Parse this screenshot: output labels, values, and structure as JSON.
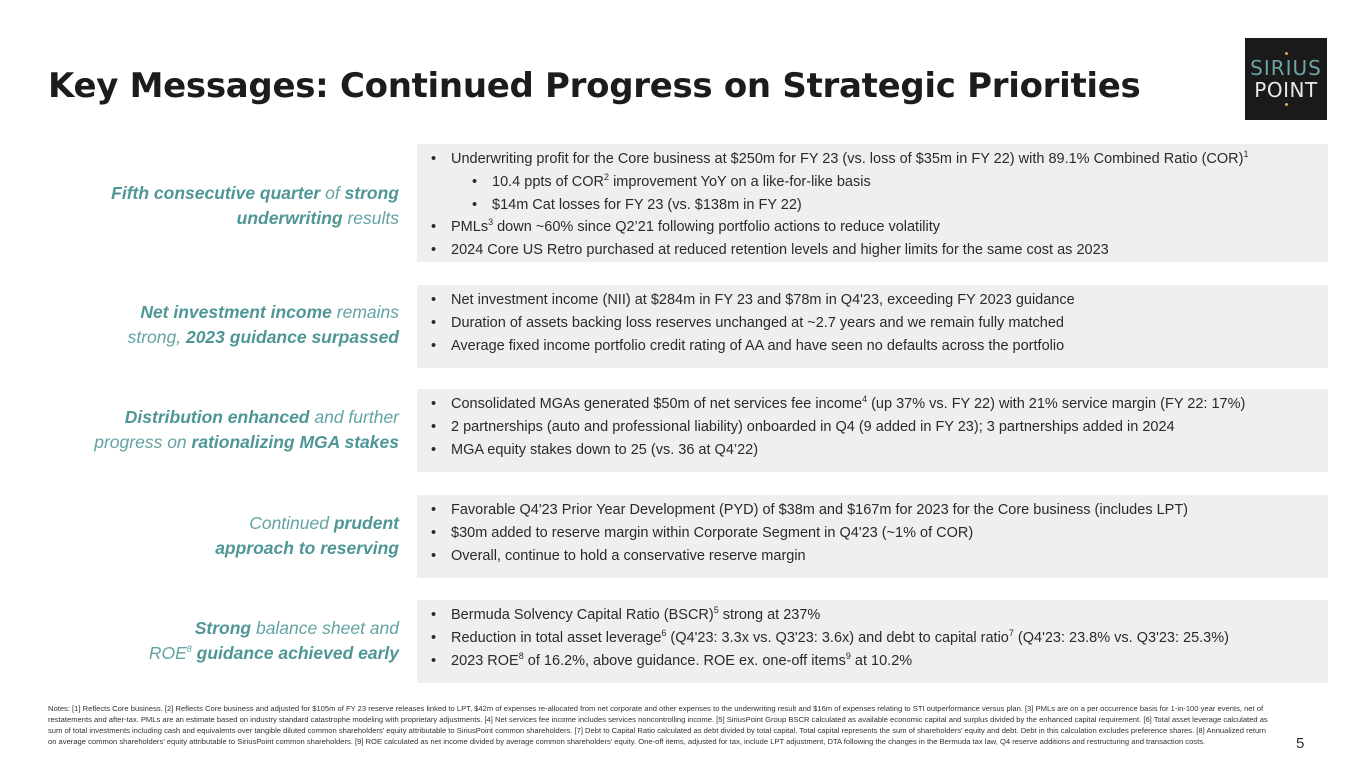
{
  "title": "Key Messages: Continued Progress on Strategic Priorities",
  "logo": {
    "line1": "SIRIUS",
    "line2": "POINT"
  },
  "sections": [
    {
      "left": [
        {
          "t": "Fifth consecutive quarter",
          "s": "b"
        },
        {
          "t": " of ",
          "s": "t"
        },
        {
          "t": "strong",
          "s": "b"
        },
        {
          "br": true
        },
        {
          "t": "underwriting",
          "s": "b"
        },
        {
          "t": " results",
          "s": "t"
        }
      ],
      "bullets": [
        {
          "text": "Underwriting profit for the Core business at $250m for FY 23 (vs. loss of $35m in FY 22) with 89.1% Combined Ratio (COR)",
          "sup": "1"
        },
        {
          "text": "10.4 ppts of COR",
          "sup": "2",
          "after": " improvement YoY on a like-for-like basis",
          "sub": true
        },
        {
          "text": "$14m Cat losses for FY 23 (vs. $138m in FY 22)",
          "sub": true
        },
        {
          "text": "PMLs",
          "sup": "3",
          "after": " down ~60% since Q2’21 following portfolio actions to reduce volatility"
        },
        {
          "text": "2024 Core US Retro purchased at reduced retention levels and higher limits for the same cost as 2023"
        }
      ]
    },
    {
      "left": [
        {
          "t": "Net investment income",
          "s": "b"
        },
        {
          "t": " remains",
          "s": "t"
        },
        {
          "br": true
        },
        {
          "t": "strong, ",
          "s": "t"
        },
        {
          "t": "2023 guidance surpassed",
          "s": "b"
        }
      ],
      "bullets": [
        {
          "text": "Net investment income (NII) at $284m in FY 23 and $78m in Q4'23, exceeding FY 2023 guidance"
        },
        {
          "text": "Duration of assets backing loss reserves unchanged at ~2.7 years and we remain fully matched"
        },
        {
          "text": "Average fixed income portfolio credit rating of AA and have seen no defaults across the portfolio"
        }
      ]
    },
    {
      "left": [
        {
          "t": "Distribution enhanced",
          "s": "b"
        },
        {
          "t": " and further",
          "s": "t"
        },
        {
          "br": true
        },
        {
          "t": "progress on ",
          "s": "t"
        },
        {
          "t": "rationalizing MGA stakes",
          "s": "b"
        }
      ],
      "bullets": [
        {
          "text": "Consolidated MGAs generated $50m of net services fee income",
          "sup": "4",
          "after": " (up 37% vs. FY 22) with 21% service margin (FY 22: 17%)"
        },
        {
          "text": "2 partnerships (auto and professional liability) onboarded in Q4 (9 added in FY 23); 3 partnerships added in 2024"
        },
        {
          "text": "MGA equity stakes down to 25 (vs. 36 at Q4’22)"
        }
      ]
    },
    {
      "left": [
        {
          "t": "Continued ",
          "s": "t"
        },
        {
          "t": "prudent",
          "s": "b"
        },
        {
          "br": true
        },
        {
          "t": "approach to reserving",
          "s": "b"
        }
      ],
      "bullets": [
        {
          "text": "Favorable Q4'23 Prior Year Development (PYD) of $38m and $167m for 2023 for the Core business (includes LPT)"
        },
        {
          "text": "$30m added to reserve margin within Corporate Segment in Q4'23 (~1% of COR)"
        },
        {
          "text": "Overall, continue to hold a conservative reserve margin"
        }
      ]
    },
    {
      "left": [
        {
          "t": "Strong",
          "s": "b"
        },
        {
          "t": " balance sheet and",
          "s": "t"
        },
        {
          "br": true
        },
        {
          "t": "ROE",
          "s": "t"
        },
        {
          "t": "8",
          "s": "tsup"
        },
        {
          "t": " guidance achieved early",
          "s": "b"
        }
      ],
      "bullets": [
        {
          "text": "Bermuda Solvency Capital Ratio (BSCR)",
          "sup": "5",
          "after": " strong at 237%"
        },
        {
          "text": "Reduction in total asset leverage",
          "sup": "6",
          "after": " (Q4'23: 3.3x vs. Q3'23: 3.6x) and debt to capital ratio",
          "sup2": "7",
          "after2": " (Q4'23: 23.8% vs. Q3'23: 25.3%)"
        },
        {
          "text": "2023 ROE",
          "sup": "8",
          "after": " of 16.2%, above guidance. ROE ex. one-off items",
          "sup2": "9",
          "after2": " at 10.2%"
        }
      ]
    }
  ],
  "notes": "Notes: [1] Reflects Core business. [2] Reflects Core business and adjusted for $105m of FY 23 reserve releases linked to LPT, $42m of expenses re-allocated from net corporate and other expenses to the underwriting result and $16m of expenses relating to STI outperformance versus plan.  [3] PMLs are on a per occurrence basis for 1-in-100 year events, net of restatements and after-tax. PMLs are an estimate based on industry standard catastrophe modeling with proprietary adjustments. [4] Net services fee income includes services noncontrolling income.  [5] SiriusPoint Group BSCR calculated as available economic capital and surplus divided by the enhanced capital requirement. [6] Total asset leverage calculated as sum of total investments including cash and equivalents over tangible diluted common shareholders’ equity attributable to SiriusPoint common shareholders. [7] Debt to Capital Ratio calculated as debt divided by total capital. Total capital represents the sum of shareholders’ equity and debt. Debt in this calculation excludes preference shares. [8] Annualized return on average common shareholders’ equity attributable to SiriusPoint common shareholders. [9] ROE calculated as net income divided by average common shareholders’ equity. One-off items, adjusted for tax, include LPT adjustment, DTA following the changes in the Bermuda tax law, Q4 reserve additions and restructuring and transaction costs.",
  "page_number": "5"
}
